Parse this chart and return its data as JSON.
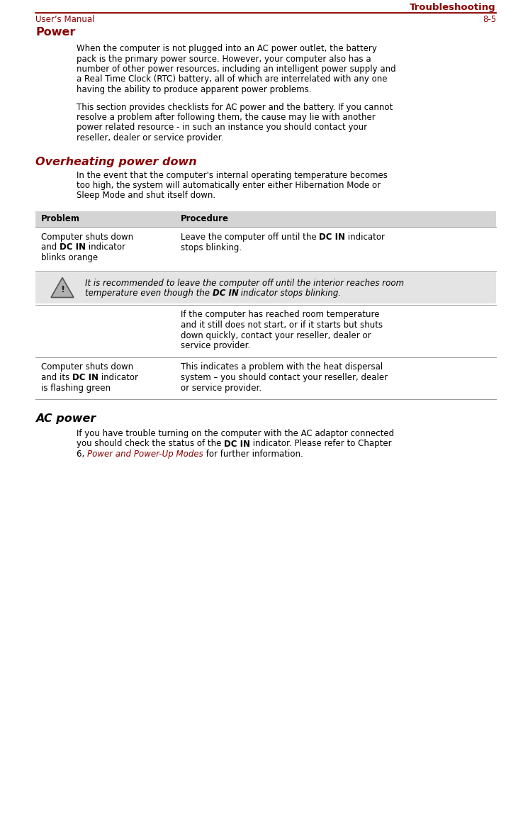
{
  "page_width": 7.38,
  "page_height": 11.72,
  "dpi": 100,
  "bg_color": "#ffffff",
  "dark_red": "#8B0000",
  "black": "#000000",
  "gray_header": "#d4d4d4",
  "note_bg": "#e4e4e4",
  "line_color": "#8B0000",
  "header_text": "Troubleshooting",
  "footer_text_left": "User’s Manual",
  "footer_text_right": "8-5",
  "section_title": "Power",
  "subsection_title": "Overheating power down",
  "ac_section_title": "AC power",
  "para1": "When the computer is not plugged into an AC power outlet, the battery\npack is the primary power source. However, your computer also has a\nnumber of other power resources, including an intelligent power supply and\na Real Time Clock (RTC) battery, all of which are interrelated with any one\nhaving the ability to produce apparent power problems.",
  "para2": "This section provides checklists for AC power and the battery. If you cannot\nresolve a problem after following them, the cause may lie with another\npower related resource - in such an instance you should contact your\nreseller, dealer or service provider.",
  "para3": "In the event that the computer's internal operating temperature becomes\ntoo high, the system will automatically enter either Hibernation Mode or\nSleep Mode and shut itself down.",
  "col1_header": "Problem",
  "col2_header": "Procedure",
  "row1_col1": [
    "Computer shuts down",
    "and |DC IN| indicator",
    "blinks orange"
  ],
  "row1_col2": [
    "Leave the computer off until the |DC IN| indicator",
    "stops blinking."
  ],
  "note_line1": "It is recommended to leave the computer off until the interior reaches room",
  "note_line2_pre": "temperature even though the ",
  "note_line2_bold": "DC IN",
  "note_line2_post": " indicator stops blinking.",
  "row2_col2": [
    "If the computer has reached room temperature",
    "and it still does not start, or if it starts but shuts",
    "down quickly, contact your reseller, dealer or",
    "service provider."
  ],
  "row3_col1": [
    "Computer shuts down",
    "and its |DC IN| indicator",
    "is flashing green"
  ],
  "row3_col2": [
    "This indicates a problem with the heat dispersal",
    "system – you should contact your reseller, dealer",
    "or service provider."
  ],
  "ac_para_l1": "If you have trouble turning on the computer with the AC adaptor connected",
  "ac_para_l2_pre": "you should check the status of the ",
  "ac_para_l2_bold": "DC IN",
  "ac_para_l2_post": " indicator. Please refer to Chapter",
  "ac_para_l3_pre": "6, ",
  "ac_para_l3_link": "Power and Power-Up Modes",
  "ac_para_l3_post": " for further information."
}
